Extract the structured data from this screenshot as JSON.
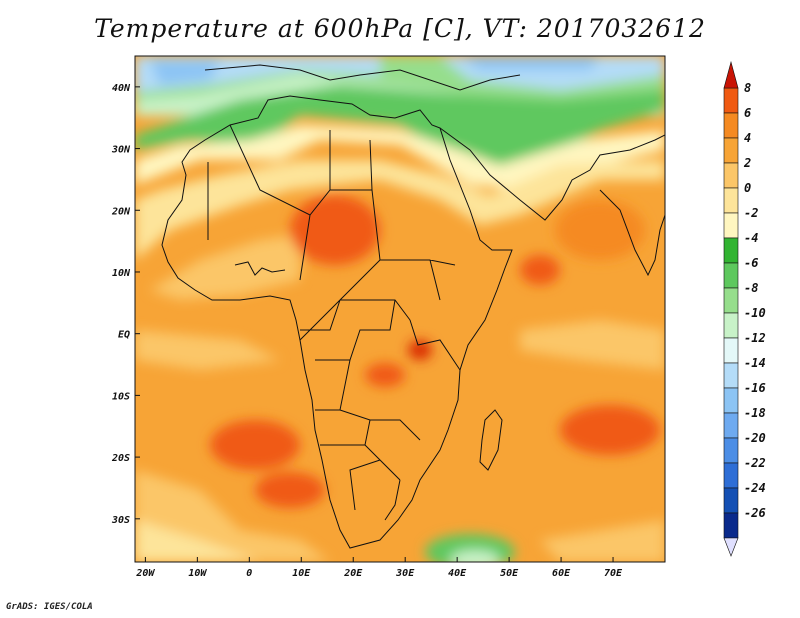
{
  "title": "Temperature at 600hPa [C], VT: 2017032612",
  "footer": "GrADS: IGES/COLA",
  "colors": {
    "ocean_base": "#f7a436",
    "border": "#111111"
  },
  "map": {
    "lon_range": [
      -22,
      80
    ],
    "lat_range": [
      -37,
      45
    ],
    "lon_ticks": [
      "20W",
      "10W",
      "0",
      "10E",
      "20E",
      "30E",
      "40E",
      "50E",
      "60E",
      "70E"
    ],
    "lat_ticks": [
      "40N",
      "30N",
      "20N",
      "10N",
      "EQ",
      "10S",
      "20S",
      "30S"
    ]
  },
  "colorbar": {
    "labels": [
      "8",
      "6",
      "4",
      "2",
      "0",
      "-2",
      "-4",
      "-6",
      "-8",
      "-10",
      "-12",
      "-14",
      "-16",
      "-18",
      "-20",
      "-22",
      "-24",
      "-26"
    ],
    "colors": [
      "#d92a05",
      "#f05a12",
      "#f58a22",
      "#f7a436",
      "#fbc668",
      "#fde49a",
      "#fff6c0",
      "#32b432",
      "#5ec85e",
      "#96de8c",
      "#c8f2c8",
      "#e4f8f8",
      "#b4dcf8",
      "#8cc4f4",
      "#6eaaf0",
      "#4c8ee6",
      "#2e6ed6",
      "#1450b4",
      "#0a2a8c"
    ],
    "top_color": "#c81405",
    "bottom_color": "#e0e0ff"
  }
}
